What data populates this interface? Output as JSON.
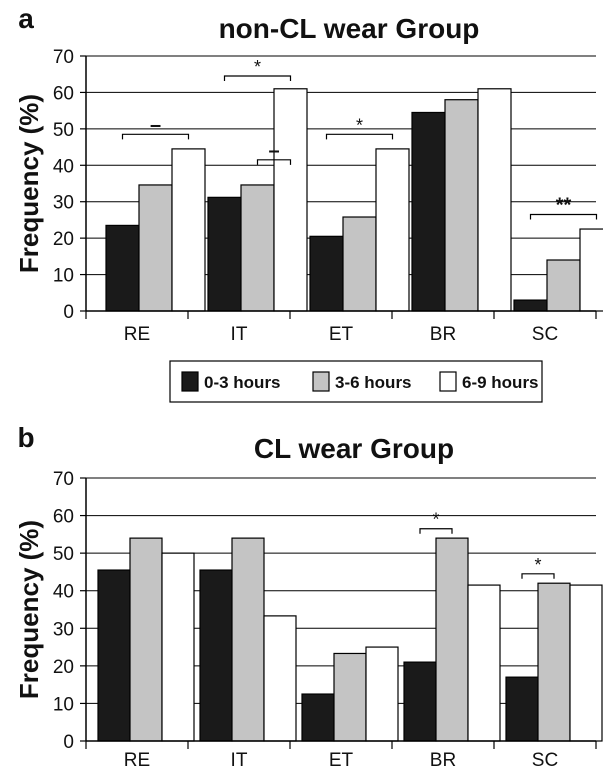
{
  "colors": {
    "series_0_3": "#1a1a1a",
    "series_3_6": "#c4c4c4",
    "series_6_9": "#ffffff",
    "stroke": "#000000"
  },
  "chart_data": [
    {
      "type": "bar",
      "panel": "a",
      "title": "non-CL wear Group",
      "ylabel": "Frequency (%)",
      "xlabel": "",
      "ylim": [
        0,
        70
      ],
      "yticks": [
        0,
        10,
        20,
        30,
        40,
        50,
        60,
        70
      ],
      "grid": "horizontal",
      "legend_position": "bottom",
      "categories": [
        "RE",
        "IT",
        "ET",
        "BR",
        "SC"
      ],
      "series": [
        {
          "name": "0-3 hours",
          "values": [
            23.5,
            31.2,
            20.5,
            54.5,
            3
          ]
        },
        {
          "name": "3-6 hours",
          "values": [
            34.6,
            34.6,
            25.8,
            58,
            14
          ]
        },
        {
          "name": "6-9 hours",
          "values": [
            44.5,
            61,
            44.5,
            61,
            22.5
          ]
        }
      ],
      "annotations": [
        {
          "category": "RE",
          "from": 0,
          "to": 2,
          "label": "–",
          "level": 48.5,
          "style": "bold"
        },
        {
          "category": "IT",
          "from": 0,
          "to": 2,
          "label": "*",
          "level": 64.5,
          "style": "normal"
        },
        {
          "category": "IT",
          "from": 1,
          "to": 2,
          "label": "–",
          "level": 41.5,
          "style": "bold"
        },
        {
          "category": "ET",
          "from": 0,
          "to": 2,
          "label": "*",
          "level": 48.5,
          "style": "normal"
        },
        {
          "category": "SC",
          "from": 0,
          "to": 2,
          "label": "**",
          "level": 26.5,
          "style": "bold"
        }
      ]
    },
    {
      "type": "bar",
      "panel": "b",
      "title": "CL wear Group",
      "ylabel": "Frequency (%)",
      "xlabel": "",
      "ylim": [
        0,
        70
      ],
      "yticks": [
        0,
        10,
        20,
        30,
        40,
        50,
        60,
        70
      ],
      "grid": "horizontal",
      "legend_position": "none",
      "categories": [
        "RE",
        "IT",
        "ET",
        "BR",
        "SC"
      ],
      "series": [
        {
          "name": "0-3 hours",
          "values": [
            45.5,
            45.5,
            12.5,
            21,
            17
          ]
        },
        {
          "name": "3-6 hours",
          "values": [
            54,
            54,
            23.3,
            54,
            42
          ]
        },
        {
          "name": "6-9 hours",
          "values": [
            50,
            33.3,
            25,
            41.5,
            41.5
          ]
        }
      ],
      "annotations": [
        {
          "category": "BR",
          "from": 0,
          "to": 1,
          "label": "*",
          "level": 56.5,
          "style": "normal"
        },
        {
          "category": "SC",
          "from": 0,
          "to": 1,
          "label": "*",
          "level": 44.5,
          "style": "normal"
        }
      ]
    }
  ]
}
